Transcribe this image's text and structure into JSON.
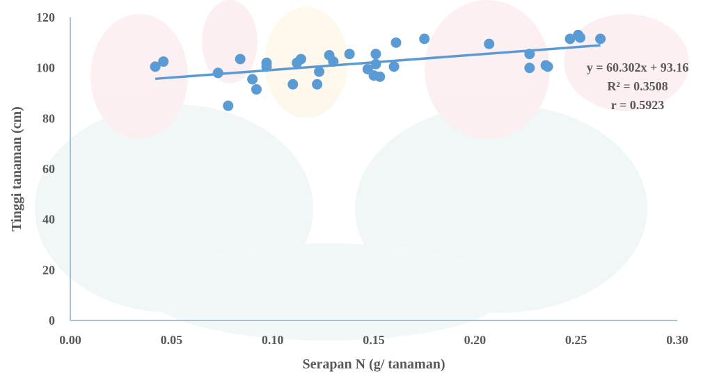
{
  "chart_data": {
    "type": "scatter",
    "title": "",
    "xlabel": "Serapan N (g/ tanaman)",
    "ylabel": "Tinggi tanaman (cm)",
    "xlim": [
      0,
      0.3
    ],
    "ylim": [
      0,
      120
    ],
    "xticks": [
      "0.00",
      "0.05",
      "0.10",
      "0.15",
      "0.20",
      "0.25",
      "0.30"
    ],
    "yticks": [
      "0",
      "20",
      "40",
      "60",
      "80",
      "100",
      "120"
    ],
    "grid": false,
    "legend": "none",
    "point_color": "#5B9BD5",
    "trendline_color": "#5B9BD5",
    "trendline": {
      "type": "linear",
      "slope": 60.302,
      "intercept": 93.16,
      "x_range": [
        0.042,
        0.262
      ]
    },
    "annotations": [
      "y = 60.302x + 93.16",
      "R² = 0.3508",
      "r = 0.5923"
    ],
    "series": [
      {
        "points": [
          [
            0.042,
            100.5
          ],
          [
            0.046,
            102.5
          ],
          [
            0.073,
            98
          ],
          [
            0.078,
            85
          ],
          [
            0.084,
            103.5
          ],
          [
            0.09,
            95.5
          ],
          [
            0.092,
            91.5
          ],
          [
            0.097,
            102
          ],
          [
            0.097,
            100.5
          ],
          [
            0.11,
            93.5
          ],
          [
            0.112,
            102
          ],
          [
            0.114,
            103.5
          ],
          [
            0.122,
            93.5
          ],
          [
            0.123,
            98.5
          ],
          [
            0.128,
            105
          ],
          [
            0.13,
            102.5
          ],
          [
            0.138,
            105.5
          ],
          [
            0.147,
            99.5
          ],
          [
            0.15,
            97
          ],
          [
            0.151,
            101.5
          ],
          [
            0.151,
            105.5
          ],
          [
            0.153,
            96.5
          ],
          [
            0.16,
            100.5
          ],
          [
            0.161,
            110
          ],
          [
            0.175,
            111.5
          ],
          [
            0.207,
            109.5
          ],
          [
            0.227,
            105.5
          ],
          [
            0.227,
            100
          ],
          [
            0.235,
            101
          ],
          [
            0.236,
            100.5
          ],
          [
            0.247,
            111.5
          ],
          [
            0.251,
            113
          ],
          [
            0.252,
            112
          ],
          [
            0.262,
            111.5
          ]
        ]
      }
    ]
  }
}
